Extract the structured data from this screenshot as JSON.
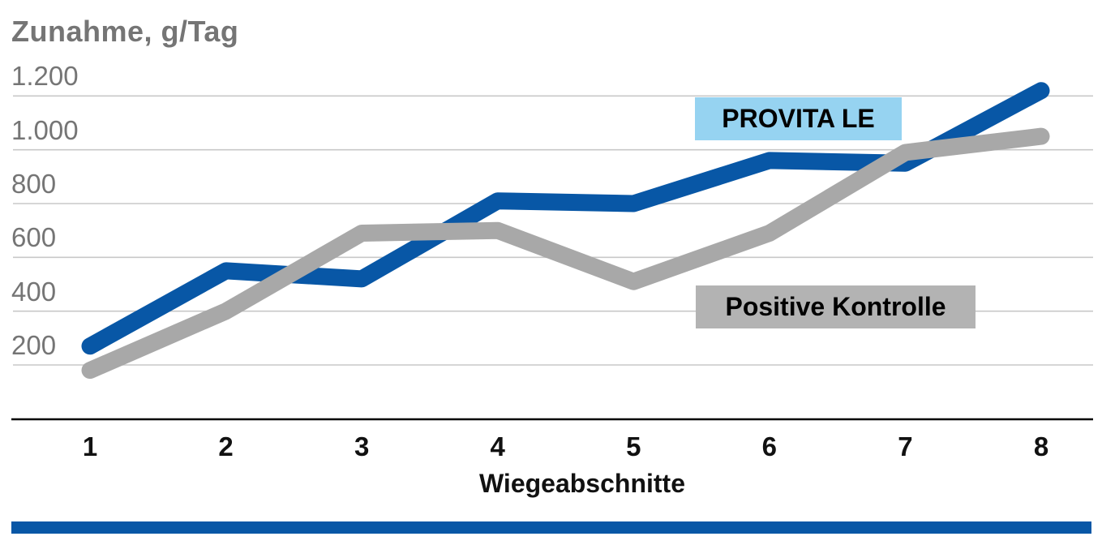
{
  "header": {
    "title": "Zunahme, g/Tag"
  },
  "chart_data": {
    "type": "line",
    "title": "Zunahme, g/Tag",
    "xlabel": "Wiegeabschnitte",
    "ylabel": "Zunahme, g/Tag",
    "categories": [
      "1",
      "2",
      "3",
      "4",
      "5",
      "6",
      "7",
      "8"
    ],
    "series": [
      {
        "name": "PROVITA LE",
        "color": "#0857a6",
        "label_bg": "#96d3f1",
        "label_text_color": "#000000",
        "values": [
          270,
          550,
          520,
          810,
          800,
          960,
          950,
          1220
        ]
      },
      {
        "name": "Positive Kontrolle",
        "color": "#a8a8a8",
        "label_bg": "#b3b3b3",
        "label_text_color": "#000000",
        "values": [
          180,
          400,
          690,
          700,
          510,
          690,
          990,
          1050
        ]
      }
    ],
    "yticks": [
      200,
      400,
      600,
      800,
      1000,
      1200
    ],
    "ytick_labels": [
      "200",
      "400",
      "600",
      "800",
      "1.000",
      "1.200"
    ],
    "ylim": [
      0,
      1300
    ],
    "grid": "horizontal",
    "legend_position": "boxed-labels-inside-plot"
  },
  "decor": {
    "bottom_bar_color": "#0857a6",
    "axis_color": "#000000",
    "gridline_color": "#c8c8c8",
    "tick_text_color": "#111111",
    "muted_text_color": "#757575",
    "background": "#ffffff"
  }
}
